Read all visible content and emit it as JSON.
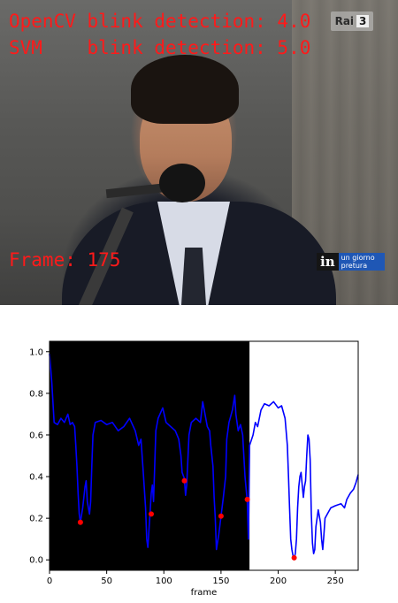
{
  "video": {
    "opencv_line": "OpenCV blink detection: 4.0",
    "svm_line": "SVM    blink detection: 5.0",
    "frame_line": "Frame: 175",
    "channel_logo": {
      "text": "Rai",
      "number": "3"
    },
    "program_badge": {
      "text_big": "in",
      "text_small_1": "un giorno",
      "text_small_2": "pretura"
    }
  },
  "chart_data": {
    "type": "line",
    "title": "",
    "xlabel": "frame",
    "ylabel": "",
    "xlim": [
      0,
      270
    ],
    "ylim": [
      -0.05,
      1.05
    ],
    "xticks": [
      0,
      50,
      100,
      150,
      200,
      250
    ],
    "yticks": [
      0.0,
      0.2,
      0.4,
      0.6,
      0.8,
      1.0
    ],
    "current_frame": 175,
    "background": {
      "processed": "#000000",
      "unprocessed": "#ffffff"
    },
    "series": [
      {
        "color": "#0000ff",
        "points": [
          [
            0,
            0.99
          ],
          [
            2,
            0.85
          ],
          [
            4,
            0.66
          ],
          [
            7,
            0.65
          ],
          [
            10,
            0.68
          ],
          [
            13,
            0.66
          ],
          [
            16,
            0.7
          ],
          [
            18,
            0.65
          ],
          [
            20,
            0.66
          ],
          [
            22,
            0.64
          ],
          [
            23,
            0.55
          ],
          [
            24,
            0.45
          ],
          [
            25,
            0.32
          ],
          [
            26,
            0.22
          ],
          [
            27,
            0.18
          ],
          [
            29,
            0.25
          ],
          [
            31,
            0.35
          ],
          [
            32,
            0.38
          ],
          [
            33,
            0.28
          ],
          [
            35,
            0.22
          ],
          [
            36,
            0.28
          ],
          [
            37,
            0.45
          ],
          [
            38,
            0.6
          ],
          [
            40,
            0.66
          ],
          [
            45,
            0.67
          ],
          [
            50,
            0.65
          ],
          [
            55,
            0.66
          ],
          [
            60,
            0.62
          ],
          [
            65,
            0.64
          ],
          [
            70,
            0.68
          ],
          [
            75,
            0.62
          ],
          [
            78,
            0.55
          ],
          [
            80,
            0.58
          ],
          [
            82,
            0.42
          ],
          [
            84,
            0.25
          ],
          [
            85,
            0.1
          ],
          [
            86,
            0.06
          ],
          [
            88,
            0.23
          ],
          [
            89,
            0.32
          ],
          [
            90,
            0.36
          ],
          [
            91,
            0.28
          ],
          [
            92,
            0.45
          ],
          [
            93,
            0.62
          ],
          [
            95,
            0.68
          ],
          [
            99,
            0.73
          ],
          [
            102,
            0.66
          ],
          [
            106,
            0.64
          ],
          [
            110,
            0.62
          ],
          [
            113,
            0.58
          ],
          [
            115,
            0.5
          ],
          [
            116,
            0.42
          ],
          [
            118,
            0.39
          ],
          [
            119,
            0.31
          ],
          [
            120,
            0.36
          ],
          [
            122,
            0.6
          ],
          [
            124,
            0.66
          ],
          [
            128,
            0.68
          ],
          [
            132,
            0.66
          ],
          [
            134,
            0.76
          ],
          [
            136,
            0.7
          ],
          [
            138,
            0.64
          ],
          [
            140,
            0.62
          ],
          [
            141,
            0.55
          ],
          [
            143,
            0.45
          ],
          [
            144,
            0.3
          ],
          [
            145,
            0.2
          ],
          [
            146,
            0.05
          ],
          [
            148,
            0.12
          ],
          [
            150,
            0.21
          ],
          [
            152,
            0.3
          ],
          [
            154,
            0.4
          ],
          [
            155,
            0.58
          ],
          [
            157,
            0.66
          ],
          [
            160,
            0.72
          ],
          [
            162,
            0.79
          ],
          [
            163,
            0.7
          ],
          [
            165,
            0.62
          ],
          [
            167,
            0.65
          ],
          [
            169,
            0.6
          ],
          [
            171,
            0.4
          ],
          [
            173,
            0.28
          ],
          [
            174,
            0.1
          ],
          [
            175,
            0.55
          ],
          [
            178,
            0.6
          ],
          [
            180,
            0.66
          ],
          [
            182,
            0.64
          ],
          [
            185,
            0.72
          ],
          [
            188,
            0.75
          ],
          [
            192,
            0.74
          ],
          [
            196,
            0.76
          ],
          [
            200,
            0.73
          ],
          [
            203,
            0.74
          ],
          [
            206,
            0.68
          ],
          [
            208,
            0.55
          ],
          [
            209,
            0.4
          ],
          [
            210,
            0.25
          ],
          [
            211,
            0.1
          ],
          [
            212,
            0.05
          ],
          [
            213,
            0.02
          ],
          [
            214,
            0.01
          ],
          [
            215,
            0.03
          ],
          [
            216,
            0.1
          ],
          [
            217,
            0.25
          ],
          [
            218,
            0.35
          ],
          [
            219,
            0.4
          ],
          [
            220,
            0.42
          ],
          [
            221,
            0.36
          ],
          [
            222,
            0.3
          ],
          [
            223,
            0.35
          ],
          [
            224,
            0.38
          ],
          [
            225,
            0.5
          ],
          [
            226,
            0.6
          ],
          [
            227,
            0.58
          ],
          [
            228,
            0.48
          ],
          [
            229,
            0.22
          ],
          [
            230,
            0.08
          ],
          [
            231,
            0.03
          ],
          [
            232,
            0.05
          ],
          [
            233,
            0.16
          ],
          [
            235,
            0.24
          ],
          [
            237,
            0.18
          ],
          [
            238,
            0.1
          ],
          [
            239,
            0.05
          ],
          [
            240,
            0.12
          ],
          [
            241,
            0.2
          ],
          [
            243,
            0.22
          ],
          [
            246,
            0.25
          ],
          [
            250,
            0.26
          ],
          [
            255,
            0.27
          ],
          [
            258,
            0.25
          ],
          [
            260,
            0.29
          ],
          [
            263,
            0.32
          ],
          [
            266,
            0.34
          ],
          [
            268,
            0.37
          ],
          [
            270,
            0.41
          ]
        ]
      },
      {
        "color": "#ff0000",
        "points": [
          [
            27,
            0.18
          ],
          [
            89,
            0.22
          ],
          [
            118,
            0.38
          ],
          [
            150,
            0.21
          ],
          [
            173,
            0.29
          ],
          [
            214,
            0.01
          ]
        ]
      }
    ]
  }
}
